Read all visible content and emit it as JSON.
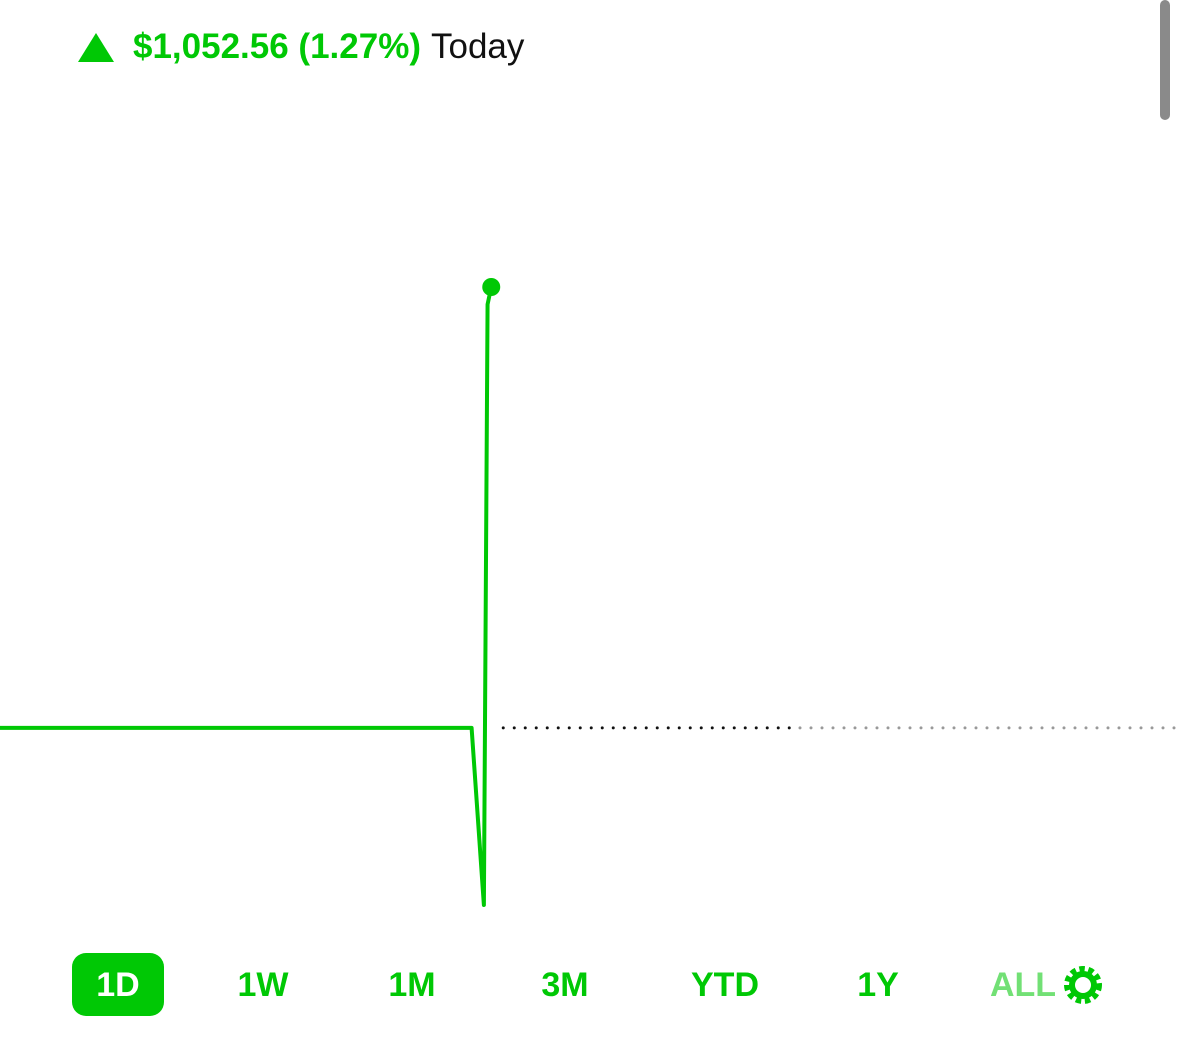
{
  "header": {
    "change": "$1,052.56 (1.27%)",
    "period": "Today"
  },
  "chart_data": {
    "type": "line",
    "x": [
      0,
      384,
      394,
      397,
      400
    ],
    "values": [
      0,
      0,
      -0.51,
      1.22,
      1.27
    ],
    "xlim": [
      0,
      960
    ],
    "baseline": 0,
    "color": "#00c805"
  },
  "tabs": [
    "1D",
    "1W",
    "1M",
    "3M",
    "YTD",
    "1Y",
    "ALL"
  ],
  "selected_tab": 0
}
